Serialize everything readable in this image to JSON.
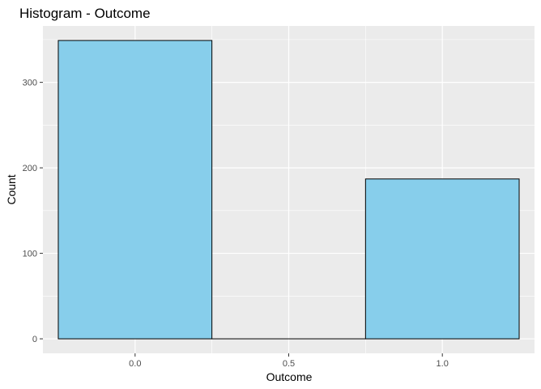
{
  "chart_data": {
    "type": "bar",
    "title": "Histogram - Outcome",
    "xlabel": "Outcome",
    "ylabel": "Count",
    "bins": [
      {
        "x_start": -0.25,
        "x_end": 0.25,
        "count": 349
      },
      {
        "x_start": 0.25,
        "x_end": 0.75,
        "count": 0
      },
      {
        "x_start": 0.75,
        "x_end": 1.25,
        "count": 187
      }
    ],
    "xlim": [
      -0.3,
      1.3
    ],
    "ylim": [
      -17,
      366
    ],
    "x_ticks": [
      0.0,
      0.5,
      1.0
    ],
    "x_tick_labels": [
      "0.0",
      "0.5",
      "1.0"
    ],
    "y_ticks": [
      0,
      100,
      200,
      300
    ],
    "y_tick_labels": [
      "0",
      "100",
      "200",
      "300"
    ],
    "fill_color": "#87CEEB",
    "border_color": "#000000",
    "panel_background": "#EBEBEB",
    "grid_color": "#FFFFFF",
    "grid": true
  }
}
